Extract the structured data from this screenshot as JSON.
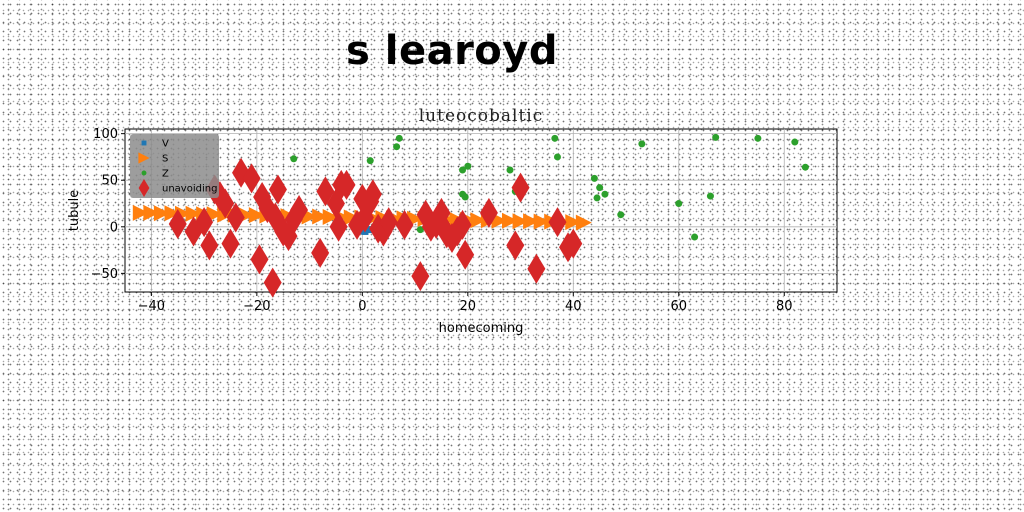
{
  "page_title": "s learoyd",
  "chart_data": {
    "type": "scatter",
    "title": "luteocobaltic",
    "xlabel": "homecoming",
    "ylabel": "tubule",
    "xlim": [
      -45,
      90
    ],
    "ylim": [
      -70,
      105
    ],
    "xticks": [
      -40,
      -20,
      0,
      20,
      40,
      60,
      80
    ],
    "yticks": [
      -50,
      0,
      50,
      100
    ],
    "grid": true,
    "legend_position": "top-left",
    "series": [
      {
        "name": "V",
        "color": "#1f77b4",
        "marker": "square",
        "x": [
          -0.5,
          0.5,
          1.2
        ],
        "y": [
          -4,
          -5,
          -3
        ]
      },
      {
        "name": "S",
        "color": "#ff7f0e",
        "marker": "triangle-right",
        "x": [
          -42,
          -40,
          -38,
          -36,
          -34,
          -32,
          -30,
          -28,
          -26,
          -24,
          -22,
          -20,
          -18,
          -16,
          -14,
          -12,
          -10,
          -8,
          -6,
          -4,
          -2,
          0,
          2,
          4,
          6,
          8,
          10,
          12,
          14,
          16,
          18,
          20,
          22,
          24,
          26,
          28,
          30,
          32,
          34,
          36,
          38,
          40,
          42
        ],
        "y": [
          15,
          15,
          14.5,
          14.5,
          14,
          14,
          13.5,
          13.5,
          13,
          13,
          12.5,
          12.5,
          12,
          12,
          11.5,
          11.5,
          11,
          11,
          10.5,
          10.5,
          10,
          10,
          9.5,
          9.5,
          9,
          9,
          8.5,
          8.5,
          8,
          8,
          7.5,
          7.5,
          7,
          7,
          6.5,
          6.5,
          6,
          6,
          5.5,
          5.5,
          5,
          5,
          4.5
        ]
      },
      {
        "name": "Z",
        "color": "#2ca02c",
        "marker": "circle",
        "x": [
          -13,
          1.5,
          6.5,
          7,
          11,
          19,
          19,
          20,
          19.5,
          28,
          29,
          36.5,
          37,
          44,
          44.5,
          45,
          46,
          49,
          53,
          60,
          63,
          66,
          67,
          75,
          82,
          84
        ],
        "y": [
          73,
          71,
          86,
          95,
          -3,
          61,
          35,
          65,
          32,
          61,
          38,
          95,
          75,
          52,
          31,
          42,
          35,
          13,
          89,
          25,
          -11,
          33,
          96,
          95,
          91,
          64
        ]
      },
      {
        "name": "unavoiding",
        "color": "#d62728",
        "marker": "diamond",
        "x": [
          -35,
          -32,
          -30,
          -29,
          -28,
          -27,
          -26,
          -25,
          -24,
          -23,
          -21,
          -19,
          -19.5,
          -18,
          -17,
          -16.5,
          -16,
          -15,
          -14,
          -13,
          -12,
          -8,
          -7,
          -5,
          -4,
          -4.5,
          -3,
          -1,
          0,
          0.5,
          1.5,
          2,
          3,
          4,
          5,
          8,
          11,
          12,
          13,
          14,
          15,
          16,
          17,
          18,
          19,
          19.5,
          24,
          29,
          30,
          33,
          37,
          39,
          40
        ],
        "y": [
          3,
          -5,
          5,
          -20,
          40,
          33,
          25,
          -18,
          10,
          58,
          52,
          32,
          -35,
          20,
          -60,
          10,
          40,
          -5,
          -10,
          8,
          18,
          -28,
          38,
          25,
          45,
          0,
          45,
          2,
          30,
          10,
          27,
          35,
          -2,
          -5,
          5,
          2,
          -53,
          13,
          0,
          3,
          15,
          -7,
          -12,
          -5,
          2,
          -30,
          15,
          -20,
          42,
          -45,
          5,
          -22,
          -18
        ]
      }
    ]
  }
}
